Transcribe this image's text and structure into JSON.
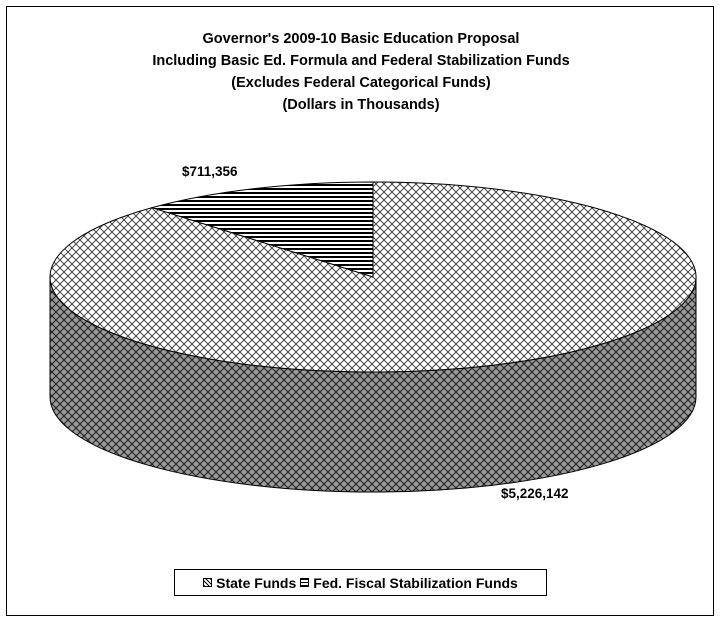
{
  "chart_data": {
    "type": "pie",
    "title_lines": [
      "Governor's 2009-10 Basic Education Proposal",
      "Including Basic Ed. Formula and Federal Stabilization Funds",
      "(Excludes Federal Categorical Funds)",
      "(Dollars in Thousands)"
    ],
    "slices": [
      {
        "name": "State Funds",
        "value": 5226142,
        "label": "$5,226,142",
        "pattern": "crosshatch"
      },
      {
        "name": "Fed. Fiscal Stabilization Funds",
        "value": 711356,
        "label": "$711,356",
        "pattern": "horizontal-stripes"
      }
    ],
    "legend_position": "bottom",
    "three_d": true
  },
  "colors": {
    "background": "#ffffff",
    "line": "#000000",
    "side_fill": "#7a7a7a",
    "top_fill": "#ffffff"
  }
}
